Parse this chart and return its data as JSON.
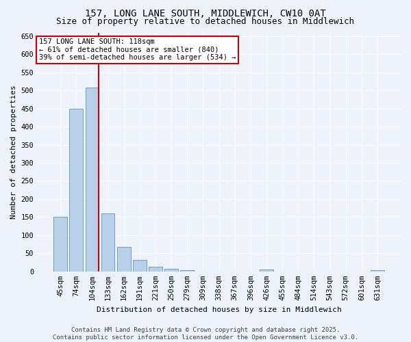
{
  "title": "157, LONG LANE SOUTH, MIDDLEWICH, CW10 0AT",
  "subtitle": "Size of property relative to detached houses in Middlewich",
  "xlabel": "Distribution of detached houses by size in Middlewich",
  "ylabel": "Number of detached properties",
  "categories": [
    "45sqm",
    "74sqm",
    "104sqm",
    "133sqm",
    "162sqm",
    "191sqm",
    "221sqm",
    "250sqm",
    "279sqm",
    "309sqm",
    "338sqm",
    "367sqm",
    "396sqm",
    "426sqm",
    "455sqm",
    "484sqm",
    "514sqm",
    "543sqm",
    "572sqm",
    "601sqm",
    "631sqm"
  ],
  "values": [
    150,
    450,
    508,
    160,
    68,
    32,
    12,
    8,
    4,
    0,
    0,
    0,
    0,
    5,
    0,
    0,
    0,
    0,
    0,
    0,
    4
  ],
  "bar_color": "#b8d0e8",
  "bar_edge_color": "#6a9fc8",
  "background_color": "#eef2fb",
  "grid_color": "#ffffff",
  "vline_color": "#cc0000",
  "vline_x_index": 2,
  "annotation_text": "157 LONG LANE SOUTH: 118sqm\n← 61% of detached houses are smaller (840)\n39% of semi-detached houses are larger (534) →",
  "annotation_box_facecolor": "#ffffff",
  "annotation_box_edgecolor": "#cc0000",
  "ylim": [
    0,
    660
  ],
  "yticks": [
    0,
    50,
    100,
    150,
    200,
    250,
    300,
    350,
    400,
    450,
    500,
    550,
    600,
    650
  ],
  "footer": "Contains HM Land Registry data © Crown copyright and database right 2025.\nContains public sector information licensed under the Open Government Licence v3.0.",
  "title_fontsize": 10,
  "subtitle_fontsize": 9,
  "axis_label_fontsize": 8,
  "tick_fontsize": 7.5,
  "annotation_fontsize": 7.5,
  "footer_fontsize": 6.5
}
